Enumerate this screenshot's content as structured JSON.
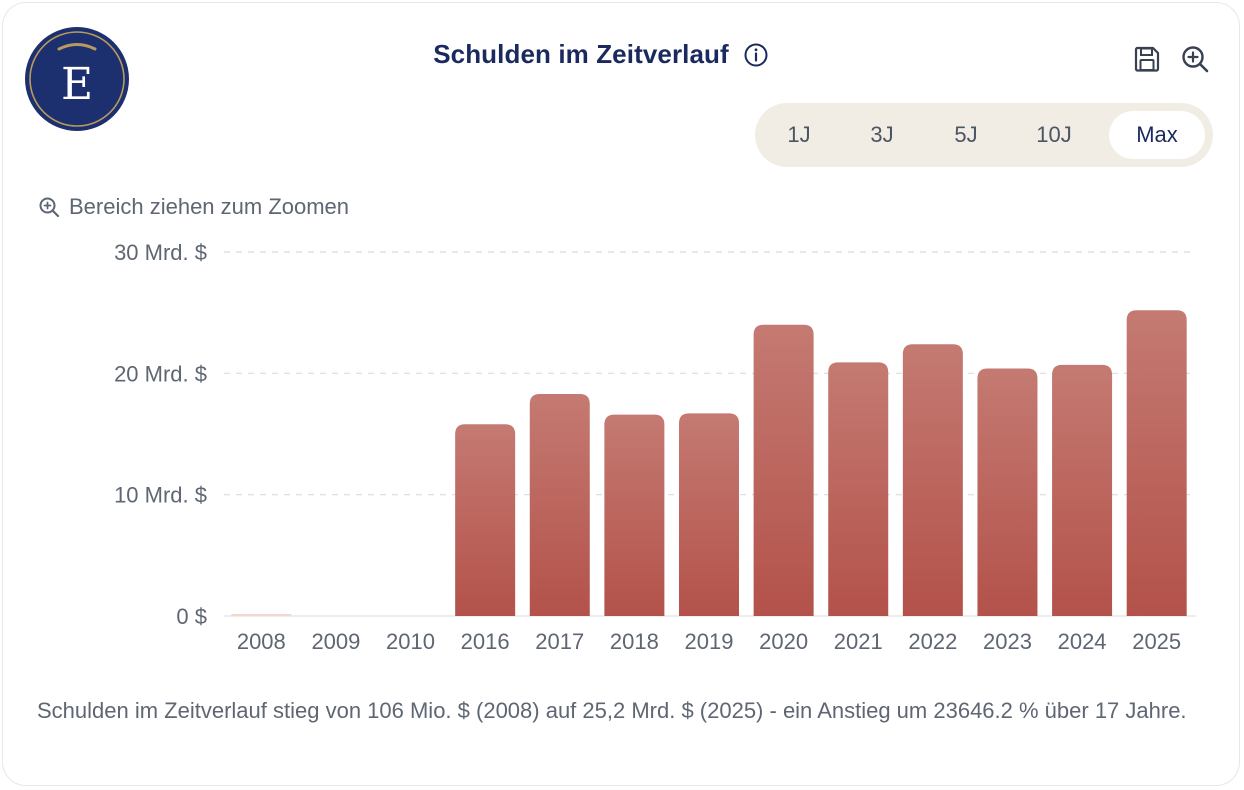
{
  "header": {
    "title": "Schulden im Zeitverlauf",
    "logo_letter": "E"
  },
  "icons": {
    "info": "info-circle-icon",
    "save": "floppy-disk-icon",
    "zoom": "zoom-in-icon"
  },
  "range_selector": {
    "options": [
      "1J",
      "3J",
      "5J",
      "10J",
      "Max"
    ],
    "selected": "Max"
  },
  "zoom_hint": "Bereich ziehen zum Zoomen",
  "chart_data": {
    "type": "bar",
    "title": "Schulden im Zeitverlauf",
    "xlabel": "",
    "ylabel": "",
    "categories": [
      "2008",
      "2009",
      "2010",
      "2016",
      "2017",
      "2018",
      "2019",
      "2020",
      "2021",
      "2022",
      "2023",
      "2024",
      "2025"
    ],
    "values": [
      0.106,
      0,
      0,
      15.8,
      18.3,
      16.6,
      16.7,
      24.0,
      20.9,
      22.4,
      20.4,
      20.7,
      25.2
    ],
    "unit": "Mrd. $",
    "ylim": [
      0,
      30
    ],
    "yticks": [
      0,
      10,
      20,
      30
    ],
    "ytick_labels": [
      "0 $",
      "10 Mrd. $",
      "20 Mrd. $",
      "30 Mrd. $"
    ],
    "grid": true,
    "colors": {
      "bar_top": "#c47a72",
      "bar_bottom": "#b3524a",
      "first_bar": "#f2d8cc"
    }
  },
  "summary": "Schulden im Zeitverlauf stieg von 106 Mio. $ (2008) auf 25,2 Mrd. $ (2025) - ein Anstieg um 23646.2 % über 17 Jahre."
}
